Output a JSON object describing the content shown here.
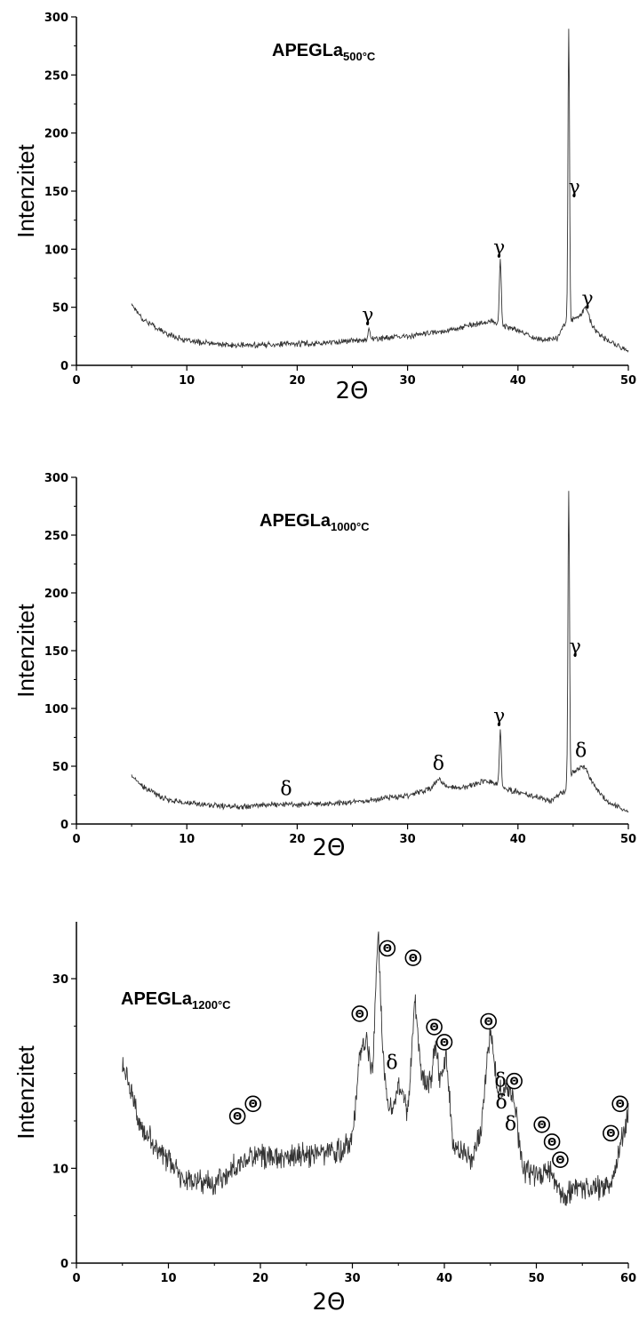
{
  "chart_data": [
    {
      "type": "line",
      "title": "APEGLa",
      "title_sub": "500°C",
      "xlabel": "2Θ",
      "ylabel": "Intenzitet",
      "xlim": [
        0,
        50
      ],
      "ylim": [
        0,
        300
      ],
      "xticks": [
        0,
        10,
        20,
        30,
        40,
        50
      ],
      "yticks": [
        0,
        50,
        100,
        150,
        200,
        250,
        300
      ],
      "grid": false,
      "baseline": [
        [
          5,
          53
        ],
        [
          6,
          40
        ],
        [
          8,
          28
        ],
        [
          10,
          21
        ],
        [
          14,
          17
        ],
        [
          18,
          18
        ],
        [
          22,
          19
        ],
        [
          26,
          22
        ],
        [
          30,
          25
        ],
        [
          33,
          29
        ],
        [
          36,
          35
        ],
        [
          37.5,
          38
        ],
        [
          39,
          33
        ],
        [
          40,
          30
        ],
        [
          42,
          22
        ],
        [
          43.5,
          23
        ],
        [
          44.2,
          35
        ],
        [
          45,
          40
        ],
        [
          46,
          44
        ],
        [
          47,
          30
        ],
        [
          48,
          22
        ],
        [
          50,
          12
        ]
      ],
      "peaks": [
        [
          26.5,
          10,
          0.12
        ],
        [
          38.4,
          57,
          0.12
        ],
        [
          44.6,
          255,
          0.1
        ],
        [
          46.2,
          8,
          0.3
        ]
      ],
      "noise": 3,
      "annotations": [
        {
          "text": "γ",
          "x": 26.4,
          "y": 38
        },
        {
          "text": "γ",
          "x": 38.3,
          "y": 96
        },
        {
          "text": "γ",
          "x": 45.1,
          "y": 148
        },
        {
          "text": "γ",
          "x": 46.3,
          "y": 52
        }
      ]
    },
    {
      "type": "line",
      "title": "APEGLa",
      "title_sub": "1000°C",
      "xlabel": "2Θ",
      "ylabel": "Intenzitet",
      "xlim": [
        0,
        50
      ],
      "ylim": [
        0,
        300
      ],
      "xticks": [
        0,
        10,
        20,
        30,
        40,
        50
      ],
      "yticks": [
        0,
        50,
        100,
        150,
        200,
        250,
        300
      ],
      "grid": false,
      "baseline": [
        [
          5,
          42
        ],
        [
          6,
          32
        ],
        [
          8,
          22
        ],
        [
          10,
          18
        ],
        [
          14,
          15
        ],
        [
          18,
          17
        ],
        [
          22,
          17
        ],
        [
          26,
          20
        ],
        [
          30,
          25
        ],
        [
          33,
          33
        ],
        [
          35,
          31
        ],
        [
          37,
          38
        ],
        [
          38,
          35
        ],
        [
          39,
          30
        ],
        [
          41,
          25
        ],
        [
          43,
          20
        ],
        [
          44.2,
          28
        ],
        [
          45,
          45
        ],
        [
          46,
          50
        ],
        [
          47,
          32
        ],
        [
          48,
          20
        ],
        [
          50,
          10
        ]
      ],
      "peaks": [
        [
          32.8,
          6,
          0.4
        ],
        [
          38.4,
          48,
          0.12
        ],
        [
          44.6,
          250,
          0.1
        ]
      ],
      "noise": 3,
      "annotations": [
        {
          "text": "δ",
          "x": 19,
          "y": 25
        },
        {
          "text": "δ",
          "x": 32.8,
          "y": 47
        },
        {
          "text": "γ",
          "x": 38.3,
          "y": 88
        },
        {
          "text": "γ",
          "x": 45.2,
          "y": 148
        },
        {
          "text": "δ",
          "x": 45.7,
          "y": 58
        }
      ]
    },
    {
      "type": "line",
      "title": "APEGLa",
      "title_sub": "1200°C",
      "xlabel": "2Θ",
      "ylabel": "Intenzitet",
      "xlim": [
        0,
        60
      ],
      "ylim": [
        0,
        36
      ],
      "xticks": [
        0,
        10,
        20,
        30,
        40,
        50,
        60
      ],
      "yticks": [
        0,
        10,
        30
      ],
      "grid": false,
      "baseline": [
        [
          5,
          21
        ],
        [
          6,
          18
        ],
        [
          7,
          14
        ],
        [
          9,
          12
        ],
        [
          11,
          9.5
        ],
        [
          13,
          8.5
        ],
        [
          15,
          8.5
        ],
        [
          17,
          10
        ],
        [
          19,
          11.5
        ],
        [
          22,
          11
        ],
        [
          26,
          11.5
        ],
        [
          29,
          12
        ],
        [
          30,
          13
        ],
        [
          30.8,
          22
        ],
        [
          31.5,
          24
        ],
        [
          32.2,
          20
        ],
        [
          32.8,
          35
        ],
        [
          33.3,
          22
        ],
        [
          34,
          16
        ],
        [
          35,
          19
        ],
        [
          36,
          16
        ],
        [
          36.8,
          28
        ],
        [
          37.5,
          20
        ],
        [
          38.5,
          19
        ],
        [
          39,
          23
        ],
        [
          39.6,
          19
        ],
        [
          40.2,
          22
        ],
        [
          41,
          12
        ],
        [
          43,
          11
        ],
        [
          44,
          14
        ],
        [
          45,
          25
        ],
        [
          45.8,
          18
        ],
        [
          46.5,
          18
        ],
        [
          47.5,
          18
        ],
        [
          48.5,
          10
        ],
        [
          50,
          9
        ],
        [
          51,
          10
        ],
        [
          52,
          9
        ],
        [
          53,
          7
        ],
        [
          55,
          8
        ],
        [
          57,
          8
        ],
        [
          58.5,
          9
        ],
        [
          59.3,
          13
        ],
        [
          60,
          16
        ]
      ],
      "peaks": [],
      "noise": 1.6,
      "annotations": [
        {
          "text": "δ",
          "x": 34.3,
          "y": 20.5
        },
        {
          "text": "δ",
          "x": 46.1,
          "y": 18.6
        },
        {
          "text": "δ",
          "x": 46.2,
          "y": 16.3
        },
        {
          "text": "δ",
          "x": 47.2,
          "y": 14
        }
      ],
      "theta_markers": [
        {
          "x": 17.5,
          "y": 15.5
        },
        {
          "x": 19.2,
          "y": 16.8
        },
        {
          "x": 30.8,
          "y": 26.3
        },
        {
          "x": 33.8,
          "y": 33.2
        },
        {
          "x": 36.6,
          "y": 32.2
        },
        {
          "x": 38.9,
          "y": 24.9
        },
        {
          "x": 40,
          "y": 23.3
        },
        {
          "x": 44.8,
          "y": 25.5
        },
        {
          "x": 47.6,
          "y": 19.2
        },
        {
          "x": 50.6,
          "y": 14.6
        },
        {
          "x": 51.7,
          "y": 12.8
        },
        {
          "x": 52.6,
          "y": 10.9
        },
        {
          "x": 58.1,
          "y": 13.7
        },
        {
          "x": 59.1,
          "y": 16.8
        }
      ]
    }
  ]
}
